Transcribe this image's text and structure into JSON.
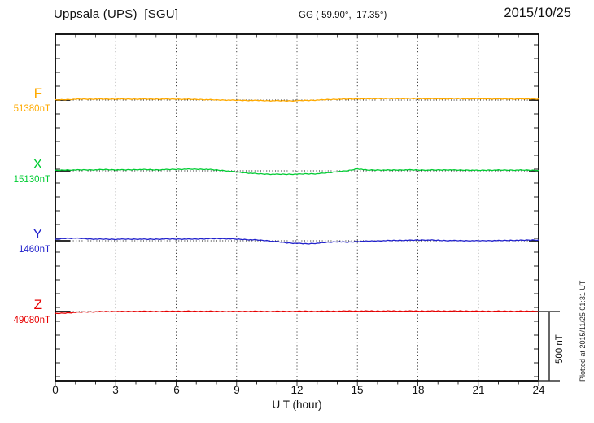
{
  "header": {
    "station": "Uppsala (UPS)  [SGU]",
    "coords": "GG ( 59.90°,  17.35°)",
    "date": "2015/10/25"
  },
  "scale_bar": {
    "label": "500 nT",
    "span_nT": 500
  },
  "plotted_note": "Plotted at 2015/11/25 01:31 UT",
  "xaxis": {
    "label": "U T (hour)",
    "ticks": [
      "0",
      "3",
      "6",
      "9",
      "12",
      "15",
      "18",
      "21",
      "24"
    ]
  },
  "chart_data": {
    "type": "line",
    "title": "Uppsala (UPS) [SGU] magnetogram, 2015/10/25",
    "xlabel": "U T (hour)",
    "xlim": [
      0,
      24
    ],
    "x_major_ticks": [
      0,
      3,
      6,
      9,
      12,
      15,
      18,
      21,
      24
    ],
    "x_minor_tick_step_hours": 1,
    "grid": "vertical dotted at 3-hour marks; dotted baseline per component",
    "scale_bar_nT": 500,
    "x_hours": [
      0,
      0.5,
      1,
      1.5,
      2,
      2.5,
      3,
      3.5,
      4,
      4.5,
      5,
      5.5,
      6,
      6.5,
      7,
      7.5,
      8,
      8.5,
      9,
      9.5,
      10,
      10.5,
      11,
      11.5,
      12,
      12.5,
      13,
      13.5,
      14,
      14.5,
      15,
      15.5,
      16,
      16.5,
      17,
      17.5,
      18,
      18.5,
      19,
      19.5,
      20,
      20.5,
      21,
      21.5,
      22,
      22.5,
      23,
      23.5,
      24
    ],
    "series": [
      {
        "name": "F",
        "base_label": "51380nT",
        "base_nT": 51380,
        "color": "#FFAA00",
        "offsets_nT": [
          0,
          3,
          6,
          7,
          7,
          7,
          7,
          7,
          7,
          7,
          7,
          7,
          7,
          6,
          5,
          3,
          1,
          0,
          -2,
          -3,
          -3,
          -5,
          -5,
          -6,
          -5,
          -3,
          0,
          3,
          6,
          7,
          9,
          9,
          11,
          11,
          11,
          11,
          11,
          9,
          9,
          9,
          11,
          9,
          9,
          9,
          8,
          8,
          8,
          8,
          8
        ]
      },
      {
        "name": "X",
        "base_label": "15130nT",
        "base_nT": 15130,
        "color": "#00CC33",
        "offsets_nT": [
          2,
          6,
          6,
          7,
          7,
          9,
          7,
          7,
          9,
          9,
          7,
          9,
          11,
          12,
          12,
          11,
          6,
          0,
          -9,
          -15,
          -21,
          -24,
          -25,
          -25,
          -24,
          -22,
          -21,
          -15,
          -6,
          0,
          15,
          5,
          6,
          5,
          6,
          7,
          6,
          5,
          6,
          7,
          5,
          5,
          3,
          5,
          5,
          5,
          5,
          5,
          3
        ]
      },
      {
        "name": "Y",
        "base_label": "1460nT",
        "base_nT": 1460,
        "color": "#2222CC",
        "offsets_nT": [
          9,
          18,
          19,
          15,
          12,
          12,
          11,
          12,
          12,
          11,
          12,
          13,
          13,
          12,
          13,
          15,
          16,
          15,
          12,
          9,
          6,
          1,
          -6,
          -15,
          -19,
          -22,
          -18,
          -11,
          -7,
          -11,
          -5,
          -3,
          -1,
          1,
          3,
          3,
          5,
          5,
          3,
          1,
          1,
          0,
          0,
          1,
          1,
          3,
          3,
          5,
          6
        ]
      },
      {
        "name": "Z",
        "base_label": "49080nT",
        "base_nT": 49080,
        "color": "#E60000",
        "offsets_nT": [
          -15,
          -11,
          -6,
          -3,
          -2,
          -1,
          0,
          0,
          1,
          1,
          0,
          1,
          2,
          2,
          1,
          2,
          1,
          0,
          0,
          1,
          1,
          0,
          1,
          1,
          1,
          2,
          1,
          2,
          2,
          3,
          3,
          3,
          3,
          3,
          3,
          3,
          3,
          3,
          3,
          3,
          3,
          3,
          2,
          2,
          2,
          2,
          2,
          2,
          2
        ]
      }
    ]
  }
}
